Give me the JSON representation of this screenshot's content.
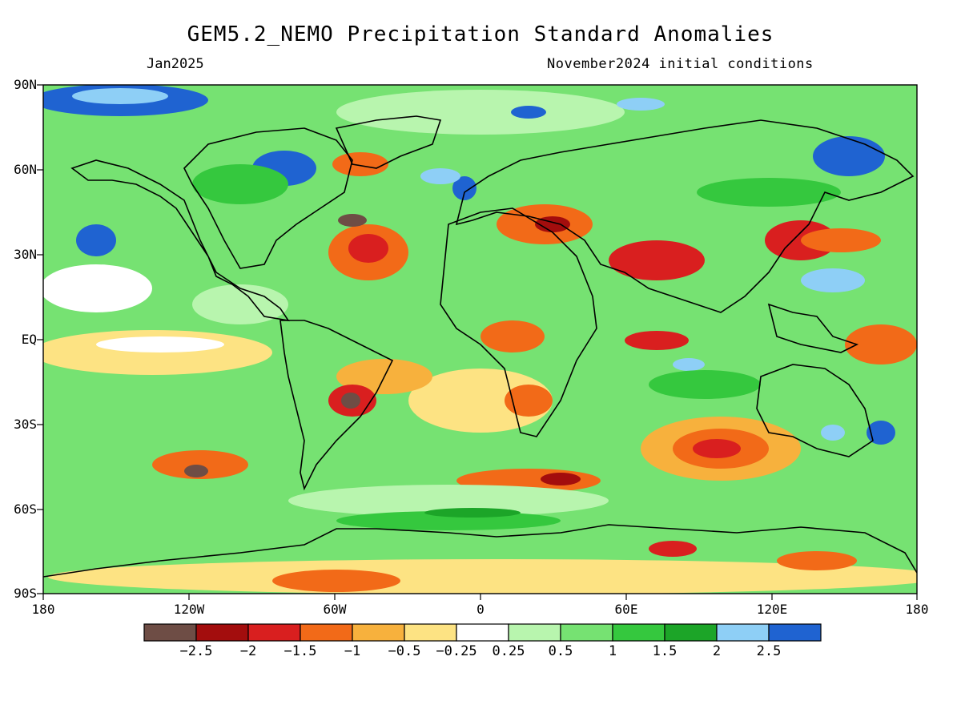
{
  "title": "GEM5.2_NEMO Precipitation Standard Anomalies",
  "valid_month": "Jan2025",
  "init_conditions": "November2024 initial conditions",
  "lat_labels": [
    "90N",
    "60N",
    "30N",
    "EQ",
    "30S",
    "60S",
    "90S"
  ],
  "lon_labels": [
    "180",
    "120W",
    "60W",
    "0",
    "60E",
    "120E",
    "180"
  ],
  "colorbar": {
    "colors": [
      "#6e4d45",
      "#a30d0d",
      "#d91f1f",
      "#f26a18",
      "#f7b13d",
      "#fde383",
      "#ffffff",
      "#b8f5ae",
      "#76e272",
      "#35c83e",
      "#1ca528",
      "#8ecff6",
      "#1f63d1"
    ],
    "labels": [
      "−2.5",
      "−2",
      "−1.5",
      "−1",
      "−0.5",
      "−0.25",
      "0.25",
      "0.5",
      "1",
      "1.5",
      "2",
      "2.5"
    ]
  },
  "map_palette": {
    "background_green": "#76e272",
    "ocean_pale": "#b8f5ae",
    "coastline": "#000000"
  }
}
